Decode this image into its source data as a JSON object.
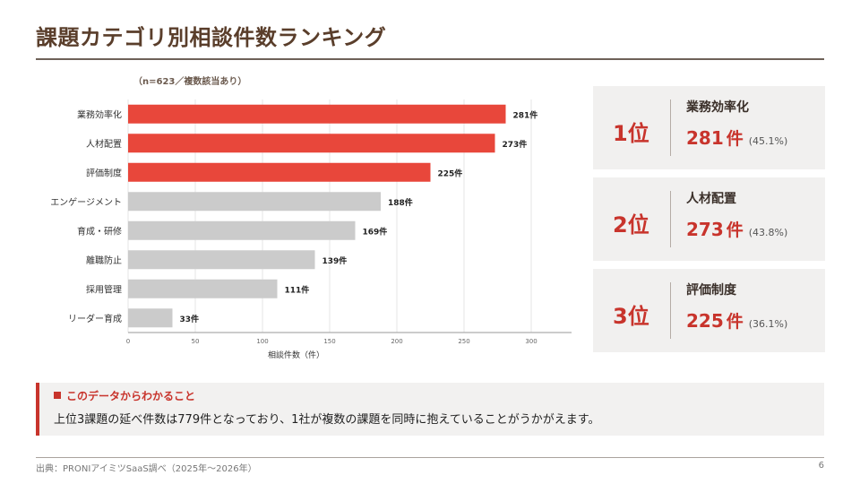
{
  "header": {
    "title": "課題カテゴリ別相談件数ランキング"
  },
  "chart_note": "（n=623／複数該当あり）",
  "chart_data": {
    "type": "bar",
    "orientation": "horizontal",
    "categories": [
      "業務効率化",
      "人材配置",
      "評価制度",
      "エンゲージメント",
      "育成・研修",
      "離職防止",
      "採用管理",
      "リーダー育成"
    ],
    "values": [
      281,
      273,
      225,
      188,
      169,
      139,
      111,
      33
    ],
    "data_labels": [
      "281件",
      "273件",
      "225件",
      "188件",
      "169件",
      "139件",
      "111件",
      "33件"
    ],
    "xlabel": "相談件数（件）",
    "xlim": [
      0,
      330
    ],
    "xticks": [
      0,
      50,
      100,
      150,
      200,
      250,
      300
    ],
    "highlight_top": 3,
    "colors": {
      "highlight": "#e8473b",
      "normal": "#cbcbcb"
    },
    "grid": true
  },
  "ranking": [
    {
      "rank": "1位",
      "label": "業務効率化",
      "count": "281",
      "unit": "件",
      "pct": "(45.1%)"
    },
    {
      "rank": "2位",
      "label": "人材配置",
      "count": "273",
      "unit": "件",
      "pct": "(43.8%)"
    },
    {
      "rank": "3位",
      "label": "評価制度",
      "count": "225",
      "unit": "件",
      "pct": "(36.1%)"
    }
  ],
  "insight": {
    "heading": "このデータからわかること",
    "text": "上位3課題の延べ件数は779件となっており、1社が複数の課題を同時に抱えていることがうかがえます。"
  },
  "footer": {
    "source": "出典：PRONIアイミツSaaS調べ（2025年〜2026年）",
    "page": "6"
  },
  "colors": {
    "accent": "#c8342c",
    "title": "#5a3e2b"
  }
}
